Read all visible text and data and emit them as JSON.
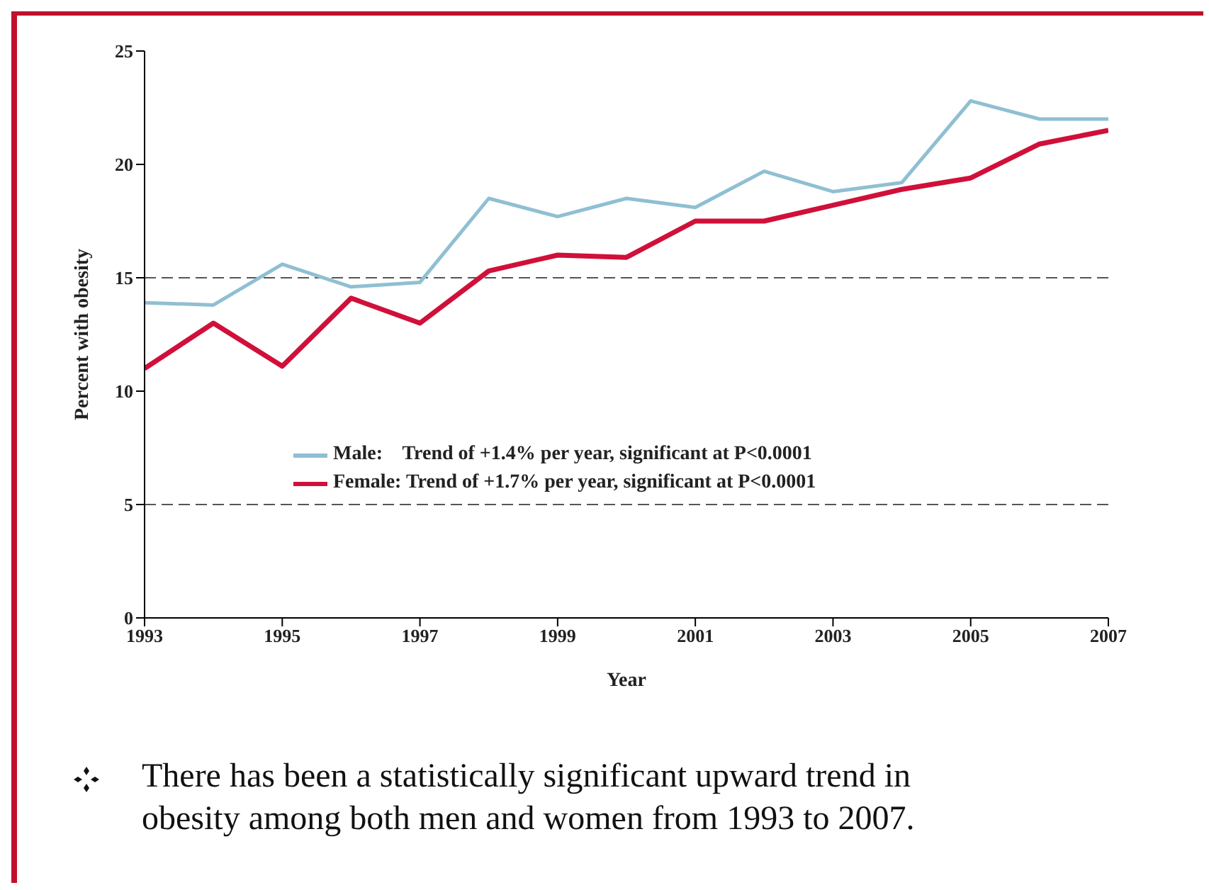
{
  "chart_data": {
    "type": "line",
    "xlabel": "Year",
    "ylabel": "Percent with obesity",
    "x": [
      1993,
      1994,
      1995,
      1996,
      1997,
      1998,
      1999,
      2000,
      2001,
      2002,
      2003,
      2004,
      2005,
      2006,
      2007
    ],
    "series": [
      {
        "name": "Male:    Trend of +1.4% per year, significant at P<0.0001",
        "color": "#8fbfd3",
        "values": [
          13.9,
          13.8,
          15.6,
          14.6,
          14.8,
          18.5,
          17.7,
          18.5,
          18.1,
          19.7,
          18.8,
          19.2,
          22.8,
          22.0,
          22.0
        ]
      },
      {
        "name": "Female: Trend of +1.7% per year, significant at P<0.0001",
        "color": "#d0103a",
        "values": [
          11.0,
          13.0,
          11.1,
          14.1,
          13.0,
          15.3,
          16.0,
          15.9,
          17.5,
          17.5,
          18.2,
          18.9,
          19.4,
          20.9,
          21.5
        ]
      }
    ],
    "xlim": [
      1993,
      2007
    ],
    "xticks": [
      1993,
      1995,
      1997,
      1999,
      2001,
      2003,
      2005,
      2007
    ],
    "ylim": [
      0,
      25
    ],
    "yticks": [
      0,
      5,
      10,
      15,
      20,
      25
    ],
    "ref_lines": [
      {
        "axis": "y",
        "value": 5,
        "color": "#555555",
        "line_style": "dashed"
      },
      {
        "axis": "y",
        "value": 15,
        "color": "#555555",
        "line_style": "dashed"
      }
    ],
    "legend": "center",
    "marker": "none",
    "line_style": "solid",
    "annotations": [
      "There has been a statistically significant upward trend in obesity among both men and women from 1993 to 2007."
    ]
  }
}
